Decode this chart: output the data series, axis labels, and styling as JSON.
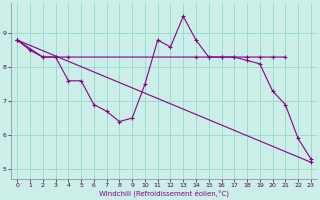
{
  "xlabel": "Windchill (Refroidissement éolien,°C)",
  "bg_color": "#cceee8",
  "grid_color": "#99ddcc",
  "line_color": "#880088",
  "xlim": [
    -0.5,
    23.5
  ],
  "ylim": [
    4.7,
    9.9
  ],
  "xticks": [
    0,
    1,
    2,
    3,
    4,
    5,
    6,
    7,
    8,
    9,
    10,
    11,
    12,
    13,
    14,
    15,
    16,
    17,
    18,
    19,
    20,
    21,
    22,
    23
  ],
  "yticks": [
    5,
    6,
    7,
    8,
    9
  ],
  "line1_x": [
    0,
    1,
    2,
    3,
    4,
    5,
    6,
    7,
    8,
    9,
    10,
    11,
    12,
    13,
    14,
    15,
    16,
    17,
    18,
    19,
    20,
    21,
    22,
    23
  ],
  "line1_y": [
    8.8,
    8.5,
    8.3,
    8.3,
    7.6,
    7.6,
    6.9,
    6.7,
    6.4,
    6.5,
    7.5,
    8.8,
    8.6,
    9.5,
    8.8,
    8.3,
    8.3,
    8.3,
    8.2,
    8.1,
    7.3,
    6.9,
    5.9,
    5.3
  ],
  "line2_x": [
    0,
    2,
    3,
    4,
    14,
    15,
    16,
    17,
    18,
    19,
    20,
    21
  ],
  "line2_y": [
    8.8,
    8.3,
    8.3,
    8.3,
    8.3,
    8.3,
    8.3,
    8.3,
    8.3,
    8.3,
    8.3,
    8.3
  ],
  "line3_x": [
    0,
    23
  ],
  "line3_y": [
    8.8,
    5.2
  ]
}
